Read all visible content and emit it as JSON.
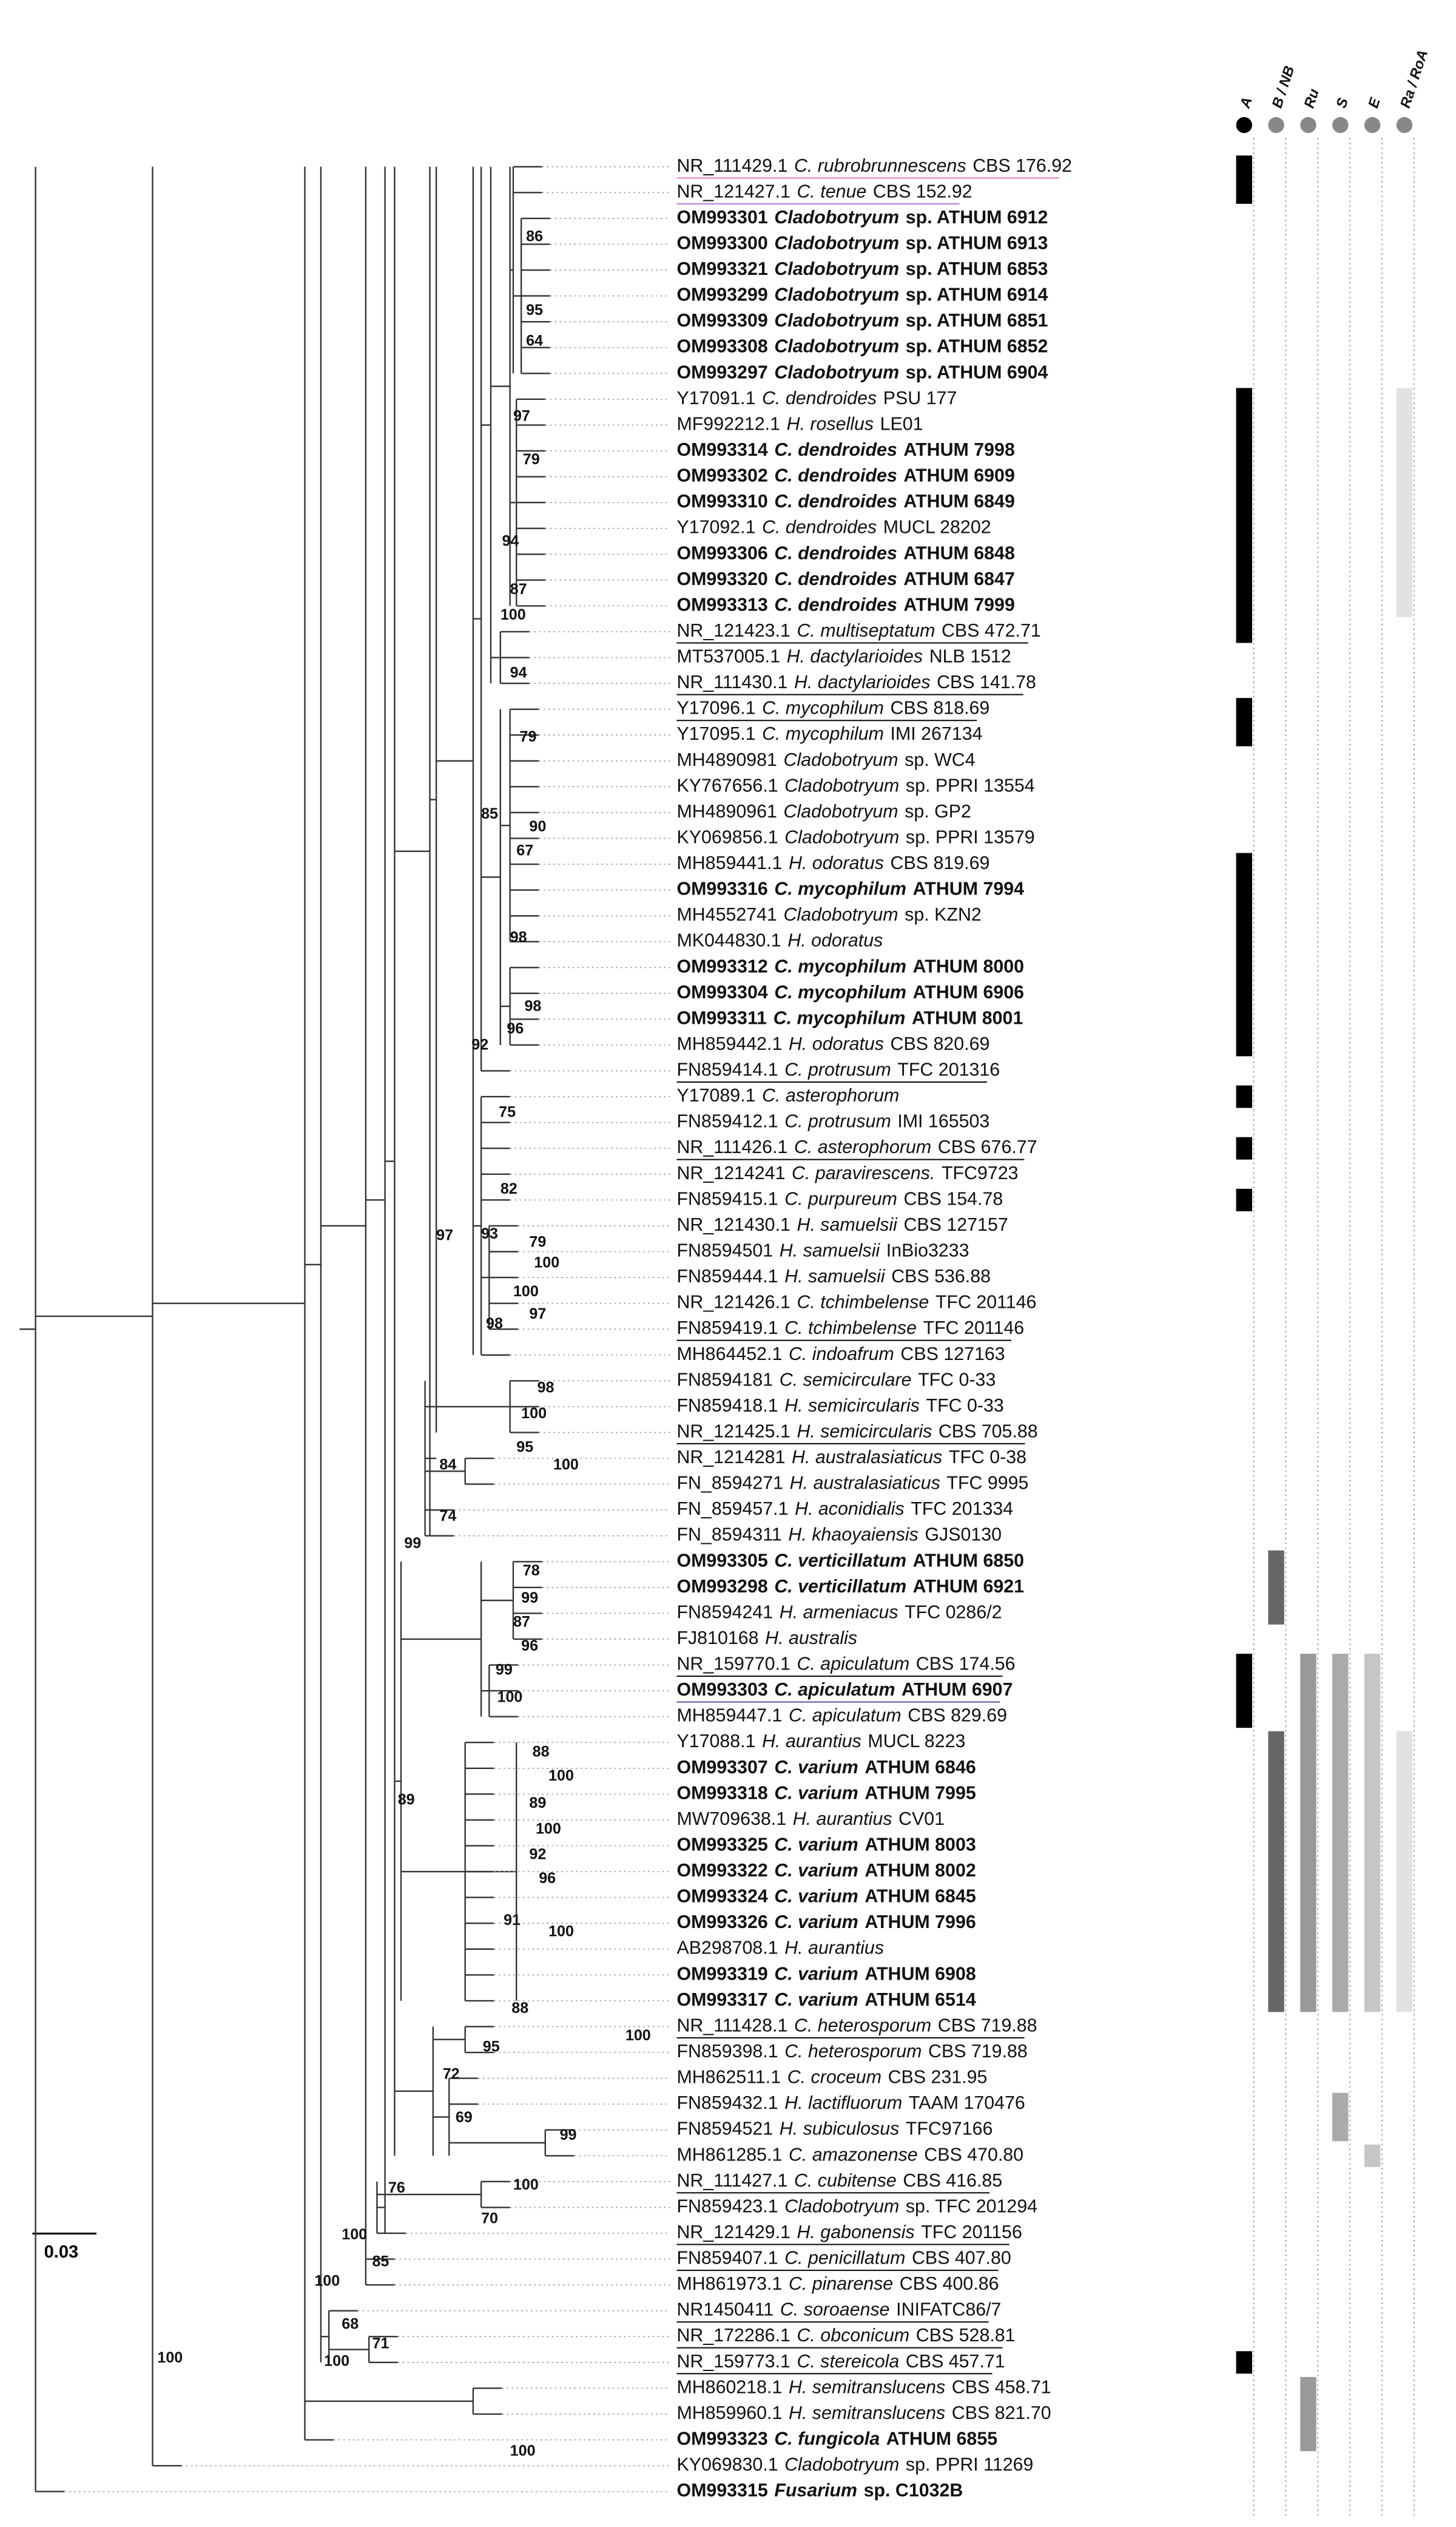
{
  "columns": [
    "A",
    "B / NB",
    "Ru",
    "S",
    "E",
    "Ra / RoA"
  ],
  "scale_label": "0.03",
  "leaves": [
    {
      "accession": "NR_111429.1",
      "taxon": "C. rubrobrunnescens",
      "strain": "CBS 176.92",
      "color": "#ec80c4",
      "underline": true
    },
    {
      "accession": "NR_121427.1",
      "taxon": "C. tenue",
      "strain": "CBS 152.92",
      "color": "#b27de6",
      "underline": true
    },
    {
      "accession": "OM993301",
      "taxon": "Cladobotryum",
      "strain": "sp. ATHUM 6912",
      "color": "#9a2fc2",
      "bold": true
    },
    {
      "accession": "OM993300",
      "taxon": "Cladobotryum",
      "strain": "sp. ATHUM 6913",
      "color": "#9a2fc2",
      "bold": true
    },
    {
      "accession": "OM993321",
      "taxon": "Cladobotryum",
      "strain": "sp. ATHUM 6853",
      "color": "#9a2fc2",
      "bold": true
    },
    {
      "accession": "OM993299",
      "taxon": "Cladobotryum",
      "strain": "sp. ATHUM 6914",
      "color": "#9a2fc2",
      "bold": true
    },
    {
      "accession": "OM993309",
      "taxon": "Cladobotryum",
      "strain": "sp. ATHUM 6851",
      "color": "#9a2fc2",
      "bold": true
    },
    {
      "accession": "OM993308",
      "taxon": "Cladobotryum",
      "strain": "sp. ATHUM 6852",
      "color": "#9a2fc2",
      "bold": true
    },
    {
      "accession": "OM993297",
      "taxon": "Cladobotryum",
      "strain": "sp. ATHUM 6904",
      "color": "#9a2fc2",
      "bold": true
    },
    {
      "accession": "Y17091.1",
      "taxon": "C. dendroides",
      "strain": "PSU 177"
    },
    {
      "accession": "MF992212.1",
      "taxon": "H. rosellus",
      "strain": "LE01"
    },
    {
      "accession": "OM993314",
      "taxon": "C. dendroides",
      "strain": "ATHUM 7998",
      "color": "#e8174a",
      "bold": true
    },
    {
      "accession": "OM993302",
      "taxon": "C. dendroides",
      "strain": "ATHUM 6909",
      "color": "#e8174a",
      "bold": true
    },
    {
      "accession": "OM993310",
      "taxon": "C. dendroides",
      "strain": "ATHUM 6849",
      "color": "#e8174a",
      "bold": true
    },
    {
      "accession": "Y17092.1",
      "taxon": "C. dendroides",
      "strain": "MUCL 28202"
    },
    {
      "accession": "OM993306",
      "taxon": "C. dendroides",
      "strain": "ATHUM 6848",
      "color": "#e8174a",
      "bold": true
    },
    {
      "accession": "OM993320",
      "taxon": "C. dendroides",
      "strain": "ATHUM 6847",
      "color": "#e8174a",
      "bold": true
    },
    {
      "accession": "OM993313",
      "taxon": "C. dendroides",
      "strain": "ATHUM 7999",
      "color": "#e8174a",
      "bold": true
    },
    {
      "accession": "NR_121423.1",
      "taxon": "C. multiseptatum",
      "strain": "CBS 472.71",
      "underline": true
    },
    {
      "accession": "MT537005.1",
      "taxon": "H. dactylarioides",
      "strain": "NLB 1512"
    },
    {
      "accession": "NR_111430.1",
      "taxon": "H. dactylarioides",
      "strain": "CBS 141.78",
      "underline": true
    },
    {
      "accession": "Y17096.1",
      "taxon": "C. mycophilum",
      "strain": "CBS 818.69",
      "underline": true
    },
    {
      "accession": "Y17095.1",
      "taxon": "C. mycophilum",
      "strain": "IMI 267134"
    },
    {
      "accession": "MH4890981",
      "taxon": "Cladobotryum",
      "strain": "sp. WC4"
    },
    {
      "accession": "KY767656.1",
      "taxon": "Cladobotryum",
      "strain": "sp. PPRI 13554"
    },
    {
      "accession": "MH4890961",
      "taxon": "Cladobotryum",
      "strain": "sp. GP2"
    },
    {
      "accession": "KY069856.1",
      "taxon": "Cladobotryum",
      "strain": "sp. PPRI 13579"
    },
    {
      "accession": "MH859441.1",
      "taxon": "H. odoratus",
      "strain": "CBS 819.69"
    },
    {
      "accession": "OM993316",
      "taxon": "C. mycophilum",
      "strain": "ATHUM 7994",
      "color": "#f07c12",
      "bold": true
    },
    {
      "accession": "MH4552741",
      "taxon": "Cladobotryum",
      "strain": "sp. KZN2"
    },
    {
      "accession": "MK044830.1",
      "taxon": "H. odoratus"
    },
    {
      "accession": "OM993312",
      "taxon": "C. mycophilum",
      "strain": "ATHUM 8000",
      "color": "#f07c12",
      "bold": true
    },
    {
      "accession": "OM993304",
      "taxon": "C. mycophilum",
      "strain": "ATHUM 6906",
      "color": "#f07c12",
      "bold": true
    },
    {
      "accession": "OM993311",
      "taxon": "C. mycophilum",
      "strain": "ATHUM 8001",
      "color": "#f07c12",
      "bold": true
    },
    {
      "accession": "MH859442.1",
      "taxon": "H. odoratus",
      "strain": "CBS 820.69"
    },
    {
      "accession": "FN859414.1",
      "taxon": "C. protrusum",
      "strain": "TFC 201316",
      "underline": true
    },
    {
      "accession": "Y17089.1",
      "taxon": "C. asterophorum"
    },
    {
      "accession": "FN859412.1",
      "taxon": "C. protrusum",
      "strain": "IMI 165503"
    },
    {
      "accession": "NR_111426.1",
      "taxon": "C. asterophorum",
      "strain": "CBS 676.77",
      "underline": true
    },
    {
      "accession": "NR_1214241",
      "taxon": "C. paravirescens.",
      "strain": "TFC9723"
    },
    {
      "accession": "FN859415.1",
      "taxon": "C. purpureum",
      "strain": "CBS 154.78"
    },
    {
      "accession": "NR_121430.1",
      "taxon": "H. samuelsii",
      "strain": "CBS 127157"
    },
    {
      "accession": "FN8594501",
      "taxon": "H. samuelsii",
      "strain": "InBio3233"
    },
    {
      "accession": "FN859444.1",
      "taxon": "H. samuelsii",
      "strain": "CBS 536.88"
    },
    {
      "accession": "NR_121426.1",
      "taxon": "C. tchimbelense",
      "strain": "TFC 201146"
    },
    {
      "accession": "FN859419.1",
      "taxon": "C. tchimbelense",
      "strain": "TFC 201146",
      "underline": true
    },
    {
      "accession": "MH864452.1",
      "taxon": "C. indoafrum",
      "strain": "CBS 127163"
    },
    {
      "accession": "FN8594181",
      "taxon": "C. semicirculare",
      "strain": "TFC 0-33"
    },
    {
      "accession": "FN859418.1",
      "taxon": "H. semicircularis",
      "strain": "TFC 0-33"
    },
    {
      "accession": "NR_121425.1",
      "taxon": "H. semicircularis",
      "strain": "CBS 705.88",
      "underline": true
    },
    {
      "accession": "NR_1214281",
      "taxon": "H. australasiaticus",
      "strain": "TFC 0-38"
    },
    {
      "accession": "FN_8594271",
      "taxon": "H. australasiaticus",
      "strain": "TFC 9995"
    },
    {
      "accession": "FN_859457.1",
      "taxon": "H. aconidialis",
      "strain": "TFC 201334"
    },
    {
      "accession": "FN_8594311",
      "taxon": "H. khaoyaiensis",
      "strain": "GJS0130"
    },
    {
      "accession": "OM993305",
      "taxon": "C. verticillatum",
      "strain": "ATHUM 6850",
      "color": "#9a9a9a",
      "bold": true
    },
    {
      "accession": "OM993298",
      "taxon": "C. verticillatum",
      "strain": "ATHUM 6921",
      "color": "#9a9a9a",
      "bold": true
    },
    {
      "accession": "FN8594241",
      "taxon": "H. armeniacus",
      "strain": "TFC 0286/2"
    },
    {
      "accession": "FJ810168",
      "taxon": "H. australis"
    },
    {
      "accession": "NR_159770.1",
      "taxon": "C. apiculatum",
      "strain": "CBS 174.56",
      "underline": true
    },
    {
      "accession": "OM993303",
      "taxon": "C. apiculatum",
      "strain": "ATHUM 6907",
      "color": "#5a5fa3",
      "bold": true,
      "underline": true
    },
    {
      "accession": "MH859447.1",
      "taxon": "C. apiculatum",
      "strain": "CBS 829.69"
    },
    {
      "accession": "Y17088.1",
      "taxon": "H. aurantius",
      "strain": "MUCL 8223"
    },
    {
      "accession": "OM993307",
      "taxon": "C. varium",
      "strain": "ATHUM 6846",
      "color": "#f2c41a",
      "bold": true
    },
    {
      "accession": "OM993318",
      "taxon": "C. varium",
      "strain": "ATHUM 7995",
      "color": "#f2c41a",
      "bold": true
    },
    {
      "accession": "MW709638.1",
      "taxon": "H. aurantius",
      "strain": "CV01"
    },
    {
      "accession": "OM993325",
      "taxon": "C. varium",
      "strain": "ATHUM 8003",
      "color": "#f2c41a",
      "bold": true
    },
    {
      "accession": "OM993322",
      "taxon": "C. varium",
      "strain": "ATHUM 8002",
      "color": "#f2c41a",
      "bold": true
    },
    {
      "accession": "OM993324",
      "taxon": "C. varium",
      "strain": "ATHUM 6845",
      "color": "#f2c41a",
      "bold": true
    },
    {
      "accession": "OM993326",
      "taxon": "C. varium",
      "strain": "ATHUM 7996",
      "color": "#f2c41a",
      "bold": true
    },
    {
      "accession": "AB298708.1",
      "taxon": "H. aurantius"
    },
    {
      "accession": "OM993319",
      "taxon": "C. varium",
      "strain": "ATHUM 6908",
      "color": "#f2c41a",
      "bold": true
    },
    {
      "accession": "OM993317",
      "taxon": "C. varium",
      "strain": "ATHUM 6514",
      "color": "#f2c41a",
      "bold": true
    },
    {
      "accession": "NR_111428.1",
      "taxon": "C. heterosporum",
      "strain": "CBS 719.88",
      "underline": true
    },
    {
      "accession": "FN859398.1",
      "taxon": "C. heterosporum",
      "strain": "CBS 719.88"
    },
    {
      "accession": "MH862511.1",
      "taxon": "C. croceum",
      "strain": "CBS 231.95"
    },
    {
      "accession": "FN859432.1",
      "taxon": "H. lactifluorum",
      "strain": "TAAM 170476"
    },
    {
      "accession": "FN8594521",
      "taxon": "H. subiculosus",
      "strain": "TFC97166"
    },
    {
      "accession": "MH861285.1",
      "taxon": "C. amazonense",
      "strain": "CBS 470.80"
    },
    {
      "accession": "NR_111427.1",
      "taxon": "C. cubitense",
      "strain": "CBS 416.85",
      "underline": true
    },
    {
      "accession": "FN859423.1",
      "taxon": "Cladobotryum",
      "strain": "sp. TFC 201294"
    },
    {
      "accession": "NR_121429.1",
      "taxon": "H. gabonensis",
      "strain": "TFC 201156",
      "underline": true
    },
    {
      "accession": "FN859407.1",
      "taxon": "C. penicillatum",
      "strain": "CBS 407.80",
      "underline": true
    },
    {
      "accession": "MH861973.1",
      "taxon": "C. pinarense",
      "strain": "CBS 400.86"
    },
    {
      "accession": "NR1450411",
      "taxon": "C. soroaense",
      "strain": "INIFATC86/7",
      "underline": true
    },
    {
      "accession": "NR_172286.1",
      "taxon": "C. obconicum",
      "strain": "CBS 528.81",
      "underline": true
    },
    {
      "accession": "NR_159773.1",
      "taxon": "C. stereicola",
      "strain": "CBS 457.71",
      "underline": true
    },
    {
      "accession": "MH860218.1",
      "taxon": "H. semitranslucens",
      "strain": "CBS 458.71"
    },
    {
      "accession": "MH859960.1",
      "taxon": "H. semitranslucens",
      "strain": "CBS 821.70"
    },
    {
      "accession": "OM993323",
      "taxon": "C. fungicola",
      "strain": "ATHUM 6855",
      "color": "#2e9a5a",
      "bold": true
    },
    {
      "accession": "KY069830.1",
      "taxon": "Cladobotryum",
      "strain": "sp. PPRI 11269"
    },
    {
      "accession": "OM993315",
      "taxon": "Fusarium",
      "strain": "sp. C1032B",
      "bold": true
    }
  ],
  "support": [
    86,
    95,
    64,
    97,
    79,
    94,
    87,
    100,
    94,
    79,
    85,
    90,
    67,
    98,
    98,
    96,
    92,
    75,
    82,
    93,
    79,
    100,
    100,
    97,
    97,
    98,
    98,
    100,
    95,
    100,
    84,
    74,
    99,
    78,
    99,
    87,
    96,
    99,
    100,
    88,
    100,
    89,
    100,
    92,
    96,
    91,
    100,
    88,
    95,
    100,
    72,
    69,
    99,
    89,
    76,
    100,
    70,
    100,
    85,
    100,
    68,
    71,
    100,
    100,
    100
  ]
}
